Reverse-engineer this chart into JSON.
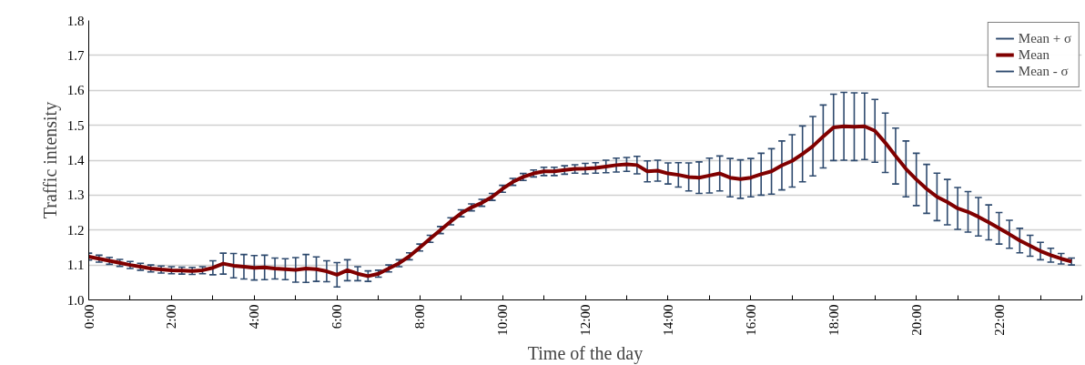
{
  "chart_data": {
    "type": "line",
    "xlabel": "Time of the day",
    "ylabel": "Traffic intensity",
    "x": [
      0,
      0.25,
      0.5,
      0.75,
      1,
      1.25,
      1.5,
      1.75,
      2,
      2.25,
      2.5,
      2.75,
      3,
      3.25,
      3.5,
      3.75,
      4,
      4.25,
      4.5,
      4.75,
      5,
      5.25,
      5.5,
      5.75,
      6,
      6.25,
      6.5,
      6.75,
      7,
      7.25,
      7.5,
      7.75,
      8,
      8.25,
      8.5,
      8.75,
      9,
      9.25,
      9.5,
      9.75,
      10,
      10.25,
      10.5,
      10.75,
      11,
      11.25,
      11.5,
      11.75,
      12,
      12.25,
      12.5,
      12.75,
      13,
      13.25,
      13.5,
      13.75,
      14,
      14.25,
      14.5,
      14.75,
      15,
      15.25,
      15.5,
      15.75,
      16,
      16.25,
      16.5,
      16.75,
      17,
      17.25,
      17.5,
      17.75,
      18,
      18.25,
      18.5,
      18.75,
      19,
      19.25,
      19.5,
      19.75,
      20,
      20.25,
      20.5,
      20.75,
      21,
      21.25,
      21.5,
      21.75,
      22,
      22.25,
      22.5,
      22.75,
      23,
      23.25,
      23.5,
      23.75
    ],
    "series": [
      {
        "name": "Mean",
        "color": "#800000",
        "values": [
          1.124,
          1.118,
          1.112,
          1.106,
          1.1,
          1.095,
          1.09,
          1.087,
          1.085,
          1.084,
          1.083,
          1.085,
          1.092,
          1.104,
          1.098,
          1.095,
          1.092,
          1.093,
          1.09,
          1.088,
          1.086,
          1.09,
          1.088,
          1.082,
          1.072,
          1.085,
          1.075,
          1.068,
          1.075,
          1.09,
          1.105,
          1.125,
          1.15,
          1.175,
          1.2,
          1.225,
          1.248,
          1.265,
          1.278,
          1.295,
          1.318,
          1.338,
          1.352,
          1.362,
          1.368,
          1.368,
          1.372,
          1.375,
          1.376,
          1.378,
          1.382,
          1.386,
          1.388,
          1.386,
          1.368,
          1.37,
          1.362,
          1.358,
          1.352,
          1.35,
          1.356,
          1.362,
          1.35,
          1.346,
          1.35,
          1.36,
          1.368,
          1.385,
          1.398,
          1.418,
          1.44,
          1.468,
          1.494,
          1.497,
          1.496,
          1.497,
          1.484,
          1.45,
          1.412,
          1.375,
          1.345,
          1.318,
          1.295,
          1.28,
          1.262,
          1.252,
          1.238,
          1.222,
          1.205,
          1.188,
          1.17,
          1.155,
          1.14,
          1.128,
          1.118,
          1.11
        ],
        "errors": [
          0.01,
          0.01,
          0.01,
          0.01,
          0.01,
          0.01,
          0.01,
          0.01,
          0.01,
          0.01,
          0.01,
          0.01,
          0.02,
          0.03,
          0.035,
          0.035,
          0.035,
          0.035,
          0.03,
          0.03,
          0.035,
          0.04,
          0.035,
          0.03,
          0.035,
          0.03,
          0.02,
          0.015,
          0.01,
          0.01,
          0.01,
          0.01,
          0.01,
          0.01,
          0.01,
          0.01,
          0.01,
          0.01,
          0.01,
          0.01,
          0.01,
          0.01,
          0.01,
          0.01,
          0.012,
          0.012,
          0.012,
          0.012,
          0.015,
          0.015,
          0.018,
          0.02,
          0.02,
          0.025,
          0.03,
          0.03,
          0.03,
          0.035,
          0.04,
          0.045,
          0.05,
          0.05,
          0.055,
          0.055,
          0.055,
          0.06,
          0.065,
          0.07,
          0.075,
          0.08,
          0.085,
          0.09,
          0.095,
          0.097,
          0.097,
          0.095,
          0.09,
          0.085,
          0.08,
          0.08,
          0.075,
          0.07,
          0.068,
          0.065,
          0.06,
          0.058,
          0.055,
          0.05,
          0.045,
          0.04,
          0.035,
          0.03,
          0.025,
          0.02,
          0.015,
          0.01
        ]
      }
    ],
    "xlim": [
      0,
      24
    ],
    "xticks": [
      {
        "value": 0,
        "label": "0:00"
      },
      {
        "value": 1,
        "label": null
      },
      {
        "value": 2,
        "label": "2:00"
      },
      {
        "value": 3,
        "label": null
      },
      {
        "value": 4,
        "label": "4:00"
      },
      {
        "value": 5,
        "label": null
      },
      {
        "value": 6,
        "label": "6:00"
      },
      {
        "value": 7,
        "label": null
      },
      {
        "value": 8,
        "label": "8:00"
      },
      {
        "value": 9,
        "label": null
      },
      {
        "value": 10,
        "label": "10:00"
      },
      {
        "value": 11,
        "label": null
      },
      {
        "value": 12,
        "label": "12:00"
      },
      {
        "value": 13,
        "label": null
      },
      {
        "value": 14,
        "label": "14:00"
      },
      {
        "value": 15,
        "label": null
      },
      {
        "value": 16,
        "label": "16:00"
      },
      {
        "value": 17,
        "label": null
      },
      {
        "value": 18,
        "label": "18:00"
      },
      {
        "value": 19,
        "label": null
      },
      {
        "value": 20,
        "label": "20:00"
      },
      {
        "value": 21,
        "label": null
      },
      {
        "value": 22,
        "label": "22:00"
      },
      {
        "value": 23,
        "label": null
      },
      {
        "value": 24,
        "label": null
      }
    ],
    "ylim": [
      1.0,
      1.8
    ],
    "yticks": [
      {
        "value": 1.0,
        "label": "1.0"
      },
      {
        "value": 1.1,
        "label": "1.1"
      },
      {
        "value": 1.2,
        "label": "1.2"
      },
      {
        "value": 1.3,
        "label": "1.3"
      },
      {
        "value": 1.4,
        "label": "1.4"
      },
      {
        "value": 1.5,
        "label": "1.5"
      },
      {
        "value": 1.6,
        "label": "1.6"
      },
      {
        "value": 1.7,
        "label": "1.7"
      },
      {
        "value": 1.8,
        "label": "1.8"
      }
    ],
    "grid": "y",
    "legend": "top right",
    "line_style": "solid",
    "annotations": [
      "Mean + σ",
      "Mean - σ"
    ]
  }
}
